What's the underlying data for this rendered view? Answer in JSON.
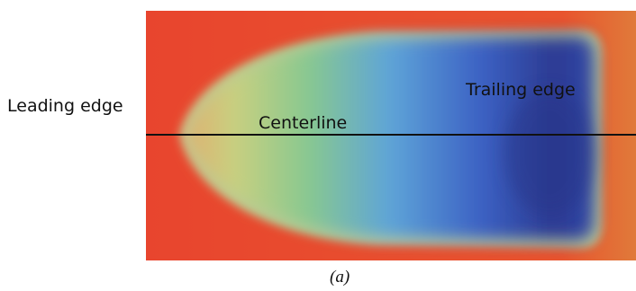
{
  "labels": {
    "leading_edge": "Leading edge",
    "centerline": "Centerline",
    "trailing_edge": "Trailing edge"
  },
  "caption": "(a)"
}
